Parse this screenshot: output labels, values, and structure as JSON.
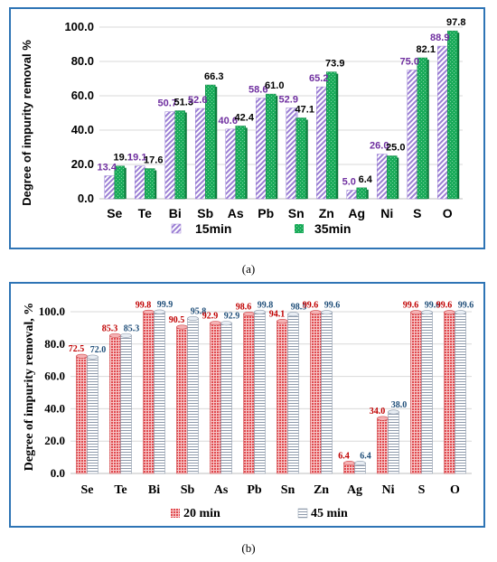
{
  "captions": {
    "a": "(a)",
    "b": "(b)"
  },
  "chart_data": [
    {
      "type": "bar",
      "title": "",
      "ylabel": "Degree of impurity removal %",
      "xlabel": "",
      "ylim": [
        0,
        100
      ],
      "yticks": [
        "0.0",
        "20.0",
        "40.0",
        "60.0",
        "80.0",
        "100.0"
      ],
      "categories": [
        "Se",
        "Te",
        "Bi",
        "Sb",
        "As",
        "Pb",
        "Sn",
        "Zn",
        "Ag",
        "Ni",
        "S",
        "O"
      ],
      "grid": true,
      "legend_position": "bottom",
      "series": [
        {
          "name": "15min",
          "color": "#9b7fd4",
          "label_color": "#7030a0",
          "values": [
            13.4,
            19.1,
            50.7,
            52.6,
            40.6,
            58.6,
            52.9,
            65.2,
            5.0,
            26.0,
            75.0,
            88.9
          ],
          "labels": [
            "13.4",
            "19.1",
            "50.7",
            "52.6",
            "40.6",
            "58.6",
            "52.9",
            "65.2",
            "5.0",
            "26.0",
            "75.0",
            "88.9"
          ]
        },
        {
          "name": "35min",
          "color": "#1aab5a",
          "label_color": "#000000",
          "values": [
            19.1,
            17.6,
            51.3,
            66.3,
            42.4,
            61.0,
            47.1,
            73.9,
            6.4,
            25.0,
            82.1,
            97.8
          ],
          "labels": [
            "19.1",
            "17.6",
            "51.3",
            "66.3",
            "42.4",
            "61.0",
            "47.1",
            "73.9",
            "6.4",
            "25.0",
            "82.1",
            "97.8"
          ]
        }
      ]
    },
    {
      "type": "bar",
      "title": "",
      "ylabel": "Degree of impurity removal, %",
      "xlabel": "",
      "ylim": [
        0,
        100
      ],
      "yticks": [
        "0.0",
        "20.0",
        "40.0",
        "60.0",
        "80.0",
        "100.0"
      ],
      "categories": [
        "Se",
        "Te",
        "Bi",
        "Sb",
        "As",
        "Pb",
        "Sn",
        "Zn",
        "Ag",
        "Ni",
        "S",
        "O"
      ],
      "grid": true,
      "legend_position": "bottom",
      "series": [
        {
          "name": "20 min",
          "color": "#e8595c",
          "label_color": "#c00000",
          "values": [
            72.5,
            85.3,
            99.8,
            90.5,
            92.9,
            98.6,
            94.1,
            99.6,
            6.4,
            34.0,
            99.6,
            99.6
          ],
          "labels": [
            "72.5",
            "85.3",
            "99.8",
            "90.5",
            "92.9",
            "98.6",
            "94.1",
            "99.6",
            "6.4",
            "34.0",
            "99.6",
            "99.6"
          ]
        },
        {
          "name": "45 min",
          "color": "#c9d2de",
          "label_color": "#1f4e79",
          "values": [
            72.0,
            85.3,
            99.9,
            95.8,
            92.9,
            99.8,
            98.5,
            99.6,
            6.4,
            38.0,
            99.6,
            99.6
          ],
          "labels": [
            "72.0",
            "85.3",
            "99.9",
            "95.8",
            "92.9",
            "99.8",
            "98.5",
            "99.6",
            "6.4",
            "38.0",
            "99.6",
            "99.6"
          ]
        }
      ]
    }
  ]
}
